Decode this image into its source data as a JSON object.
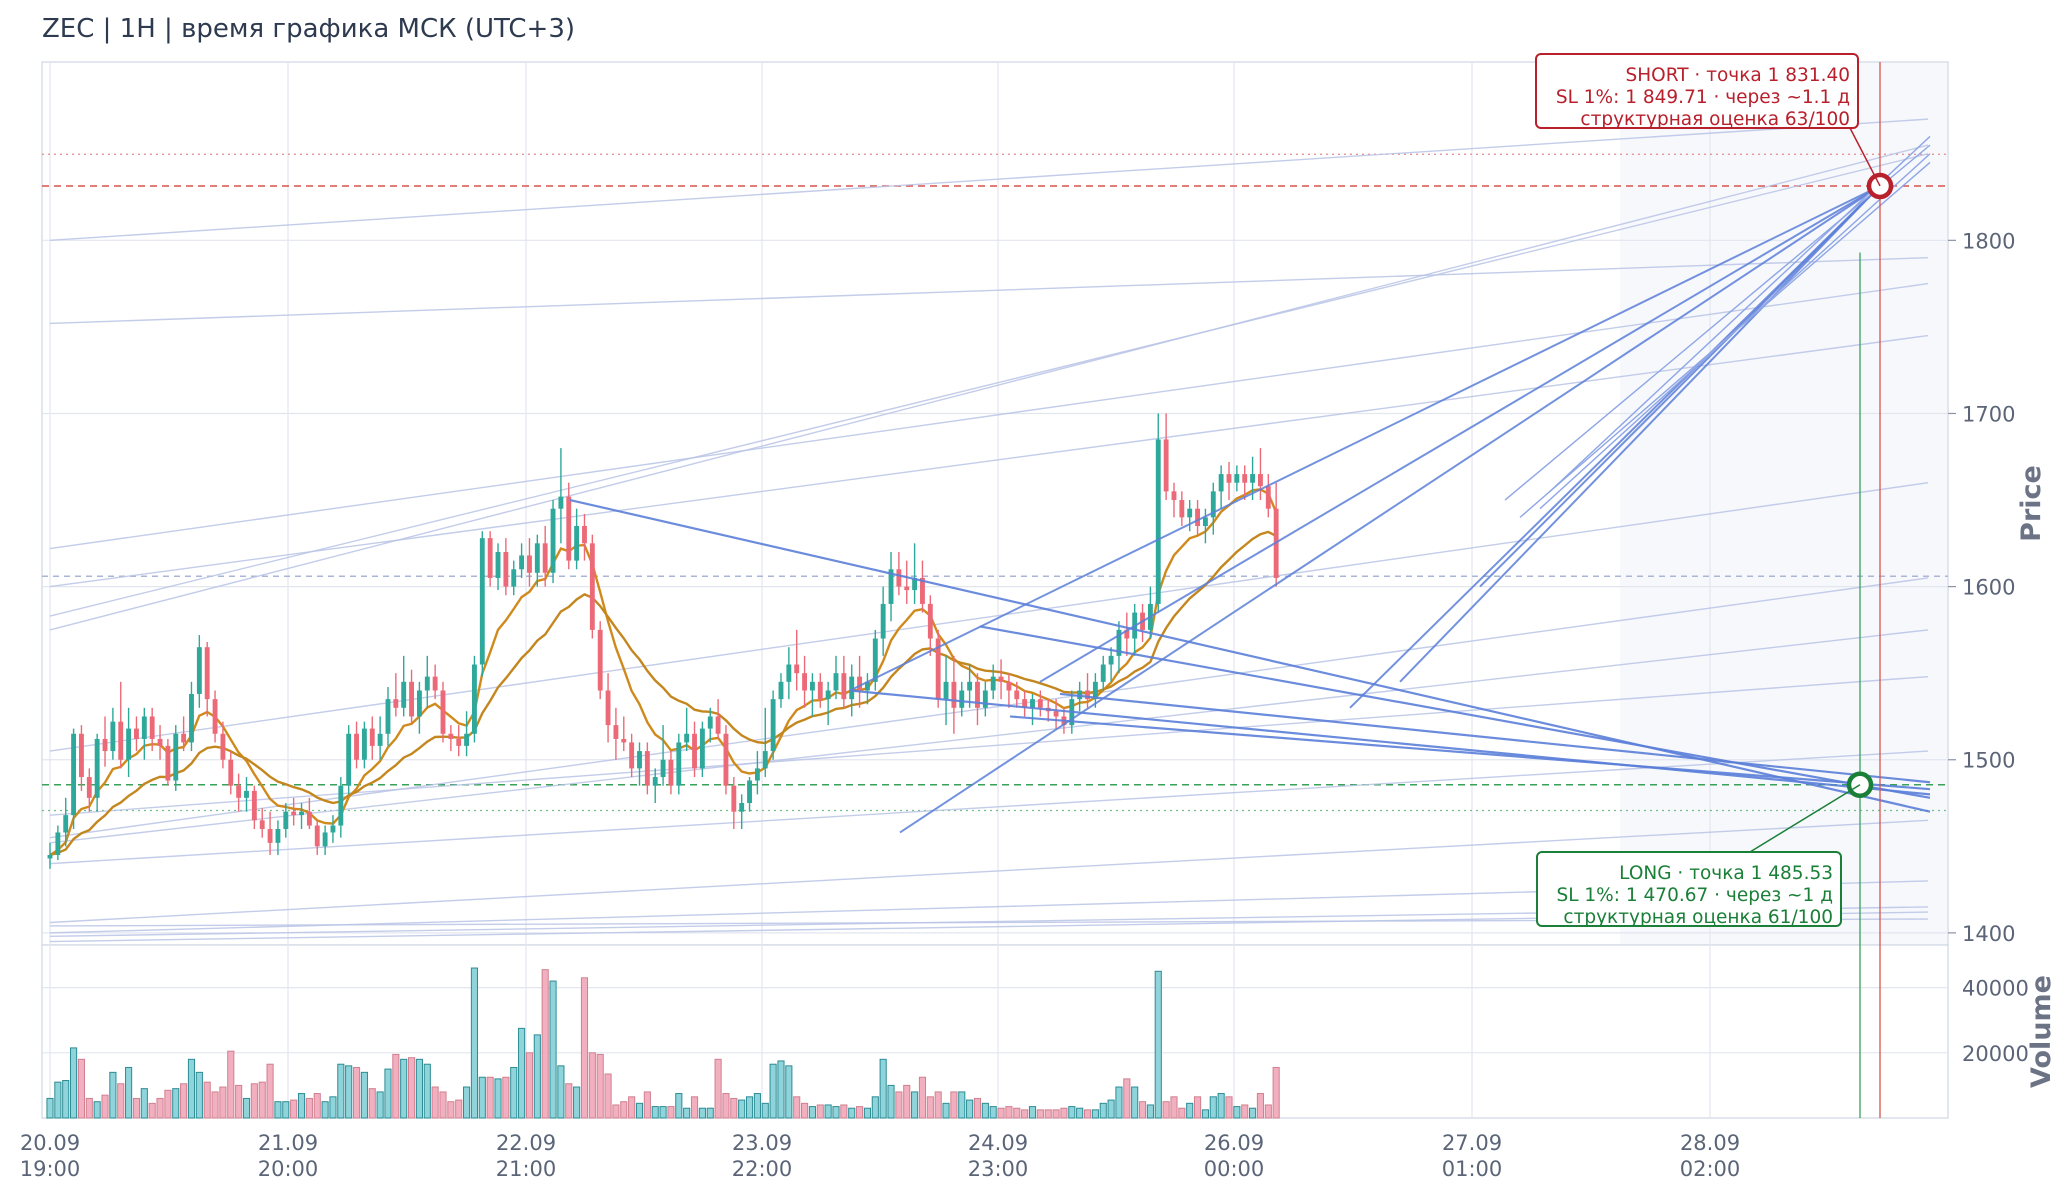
{
  "title": "ZEC | 1H | время графика МСК (UTC+3)",
  "colors": {
    "up": "#2ea89a",
    "down": "#ec6a78",
    "ema_fast": "#d08a1c",
    "ema_slow": "#c4871f",
    "trend": "#5b7fd9",
    "short": "#b8202c",
    "long": "#1a7f37",
    "vol_up": "#8fd4db",
    "vol_down": "#f2afbf",
    "grid": "#e2e6ef"
  },
  "chart_data": {
    "type": "candlestick",
    "symbol": "ZEC",
    "timeframe": "1H",
    "x_ticks": [
      {
        "date": "20.09",
        "time": "19:00"
      },
      {
        "date": "21.09",
        "time": "20:00"
      },
      {
        "date": "22.09",
        "time": "21:00"
      },
      {
        "date": "23.09",
        "time": "22:00"
      },
      {
        "date": "24.09",
        "time": "23:00"
      },
      {
        "date": "26.09",
        "time": "00:00"
      },
      {
        "date": "27.09",
        "time": "01:00"
      },
      {
        "date": "28.09",
        "time": "02:00"
      }
    ],
    "price_axis": {
      "label": "Price",
      "ticks": [
        1400,
        1500,
        1600,
        1700,
        1800
      ],
      "range": [
        1393,
        1903
      ]
    },
    "volume_axis": {
      "label": "Volume",
      "ticks": [
        20000,
        40000
      ],
      "range": [
        0,
        50000
      ]
    },
    "candles": [
      [
        1443,
        1452,
        1437,
        1445,
        6000
      ],
      [
        1445,
        1462,
        1442,
        1458,
        11000
      ],
      [
        1458,
        1478,
        1450,
        1468,
        11500
      ],
      [
        1468,
        1518,
        1460,
        1515,
        21500
      ],
      [
        1515,
        1520,
        1482,
        1490,
        18000
      ],
      [
        1490,
        1495,
        1470,
        1478,
        6000
      ],
      [
        1478,
        1515,
        1470,
        1512,
        5000
      ],
      [
        1512,
        1525,
        1496,
        1505,
        7000
      ],
      [
        1505,
        1530,
        1500,
        1522,
        14000
      ],
      [
        1522,
        1545,
        1495,
        1500,
        10500
      ],
      [
        1500,
        1530,
        1490,
        1518,
        15500
      ],
      [
        1518,
        1525,
        1505,
        1512,
        6000
      ],
      [
        1512,
        1530,
        1500,
        1525,
        9000
      ],
      [
        1525,
        1530,
        1505,
        1512,
        4500
      ],
      [
        1512,
        1520,
        1500,
        1508,
        6000
      ],
      [
        1508,
        1512,
        1485,
        1488,
        8500
      ],
      [
        1488,
        1520,
        1482,
        1515,
        9000
      ],
      [
        1515,
        1525,
        1505,
        1510,
        10500
      ],
      [
        1510,
        1545,
        1505,
        1538,
        18000
      ],
      [
        1538,
        1572,
        1530,
        1565,
        14000
      ],
      [
        1565,
        1568,
        1525,
        1535,
        11000
      ],
      [
        1535,
        1540,
        1510,
        1515,
        8000
      ],
      [
        1515,
        1522,
        1495,
        1500,
        9500
      ],
      [
        1500,
        1505,
        1480,
        1485,
        20500
      ],
      [
        1485,
        1492,
        1470,
        1478,
        10000
      ],
      [
        1478,
        1490,
        1470,
        1482,
        6000
      ],
      [
        1482,
        1485,
        1460,
        1465,
        10500
      ],
      [
        1465,
        1472,
        1455,
        1460,
        11000
      ],
      [
        1460,
        1470,
        1445,
        1452,
        16500
      ],
      [
        1452,
        1465,
        1445,
        1460,
        5000
      ],
      [
        1460,
        1475,
        1455,
        1470,
        5000
      ],
      [
        1470,
        1478,
        1462,
        1468,
        5500
      ],
      [
        1468,
        1475,
        1460,
        1470,
        7500
      ],
      [
        1470,
        1478,
        1460,
        1462,
        6000
      ],
      [
        1462,
        1465,
        1445,
        1450,
        7500
      ],
      [
        1450,
        1462,
        1445,
        1458,
        5000
      ],
      [
        1458,
        1468,
        1452,
        1462,
        6500
      ],
      [
        1462,
        1490,
        1455,
        1485,
        16500
      ],
      [
        1485,
        1520,
        1480,
        1515,
        16000
      ],
      [
        1515,
        1522,
        1495,
        1500,
        15500
      ],
      [
        1500,
        1522,
        1495,
        1518,
        14000
      ],
      [
        1518,
        1525,
        1500,
        1508,
        9000
      ],
      [
        1508,
        1525,
        1500,
        1515,
        8000
      ],
      [
        1515,
        1542,
        1508,
        1535,
        15000
      ],
      [
        1535,
        1550,
        1525,
        1530,
        19500
      ],
      [
        1530,
        1560,
        1525,
        1545,
        18000
      ],
      [
        1545,
        1552,
        1520,
        1525,
        18500
      ],
      [
        1525,
        1545,
        1515,
        1540,
        18000
      ],
      [
        1540,
        1560,
        1530,
        1548,
        16500
      ],
      [
        1548,
        1555,
        1535,
        1540,
        9500
      ],
      [
        1540,
        1545,
        1510,
        1515,
        8000
      ],
      [
        1515,
        1520,
        1505,
        1512,
        5000
      ],
      [
        1512,
        1520,
        1502,
        1508,
        5500
      ],
      [
        1508,
        1528,
        1502,
        1515,
        9500
      ],
      [
        1515,
        1560,
        1510,
        1555,
        46000
      ],
      [
        1555,
        1632,
        1548,
        1628,
        12500
      ],
      [
        1628,
        1632,
        1600,
        1605,
        12500
      ],
      [
        1605,
        1625,
        1598,
        1620,
        12000
      ],
      [
        1620,
        1628,
        1595,
        1600,
        12500
      ],
      [
        1600,
        1615,
        1595,
        1610,
        15500
      ],
      [
        1610,
        1625,
        1605,
        1618,
        27500
      ],
      [
        1618,
        1628,
        1600,
        1608,
        20000
      ],
      [
        1608,
        1630,
        1600,
        1625,
        25500
      ],
      [
        1625,
        1635,
        1600,
        1608,
        45500
      ],
      [
        1608,
        1650,
        1602,
        1645,
        42000
      ],
      [
        1645,
        1680,
        1625,
        1652,
        16000
      ],
      [
        1652,
        1660,
        1610,
        1615,
        10500
      ],
      [
        1615,
        1645,
        1610,
        1635,
        9500
      ],
      [
        1635,
        1642,
        1615,
        1625,
        43000
      ],
      [
        1625,
        1630,
        1570,
        1575,
        20000
      ],
      [
        1575,
        1580,
        1535,
        1540,
        19500
      ],
      [
        1540,
        1550,
        1510,
        1520,
        13500
      ],
      [
        1520,
        1530,
        1500,
        1512,
        4000
      ],
      [
        1512,
        1525,
        1505,
        1510,
        5000
      ],
      [
        1510,
        1515,
        1490,
        1495,
        6500
      ],
      [
        1495,
        1510,
        1485,
        1505,
        4500
      ],
      [
        1505,
        1510,
        1480,
        1485,
        8000
      ],
      [
        1485,
        1495,
        1475,
        1490,
        3500
      ],
      [
        1490,
        1520,
        1485,
        1500,
        3500
      ],
      [
        1500,
        1505,
        1480,
        1485,
        3500
      ],
      [
        1485,
        1515,
        1480,
        1510,
        7500
      ],
      [
        1510,
        1530,
        1505,
        1515,
        3000
      ],
      [
        1515,
        1522,
        1490,
        1495,
        6500
      ],
      [
        1495,
        1522,
        1490,
        1518,
        3000
      ],
      [
        1518,
        1530,
        1510,
        1525,
        3000
      ],
      [
        1525,
        1535,
        1512,
        1515,
        18000
      ],
      [
        1515,
        1520,
        1480,
        1485,
        7500
      ],
      [
        1485,
        1490,
        1460,
        1470,
        6000
      ],
      [
        1470,
        1480,
        1460,
        1475,
        5500
      ],
      [
        1475,
        1490,
        1470,
        1488,
        6500
      ],
      [
        1488,
        1505,
        1480,
        1495,
        7500
      ],
      [
        1495,
        1530,
        1490,
        1505,
        4500
      ],
      [
        1505,
        1540,
        1500,
        1535,
        16500
      ],
      [
        1535,
        1550,
        1530,
        1545,
        17500
      ],
      [
        1545,
        1565,
        1535,
        1555,
        16000
      ],
      [
        1555,
        1575,
        1540,
        1550,
        6500
      ],
      [
        1550,
        1560,
        1530,
        1540,
        4500
      ],
      [
        1540,
        1550,
        1525,
        1545,
        3500
      ],
      [
        1545,
        1550,
        1530,
        1535,
        4000
      ],
      [
        1535,
        1545,
        1520,
        1540,
        4000
      ],
      [
        1540,
        1560,
        1535,
        1550,
        3500
      ],
      [
        1550,
        1560,
        1530,
        1535,
        4000
      ],
      [
        1535,
        1555,
        1525,
        1548,
        3000
      ],
      [
        1548,
        1560,
        1530,
        1540,
        3500
      ],
      [
        1540,
        1550,
        1532,
        1545,
        3000
      ],
      [
        1545,
        1575,
        1540,
        1570,
        6500
      ],
      [
        1570,
        1600,
        1560,
        1590,
        18000
      ],
      [
        1590,
        1620,
        1580,
        1610,
        10000
      ],
      [
        1610,
        1620,
        1595,
        1600,
        8000
      ],
      [
        1600,
        1615,
        1590,
        1598,
        10000
      ],
      [
        1598,
        1625,
        1590,
        1605,
        8000
      ],
      [
        1605,
        1615,
        1585,
        1590,
        12500
      ],
      [
        1590,
        1595,
        1560,
        1570,
        6500
      ],
      [
        1570,
        1575,
        1530,
        1535,
        8000
      ],
      [
        1535,
        1560,
        1520,
        1545,
        4500
      ],
      [
        1545,
        1560,
        1515,
        1530,
        8000
      ],
      [
        1530,
        1545,
        1525,
        1540,
        8000
      ],
      [
        1540,
        1555,
        1530,
        1545,
        5500
      ],
      [
        1545,
        1550,
        1520,
        1530,
        6000
      ],
      [
        1530,
        1545,
        1525,
        1540,
        4500
      ],
      [
        1540,
        1555,
        1535,
        1548,
        3500
      ],
      [
        1548,
        1558,
        1535,
        1545,
        3000
      ],
      [
        1545,
        1550,
        1530,
        1540,
        3500
      ],
      [
        1540,
        1545,
        1530,
        1535,
        3000
      ],
      [
        1535,
        1540,
        1525,
        1530,
        2500
      ],
      [
        1530,
        1538,
        1520,
        1535,
        3500
      ],
      [
        1535,
        1540,
        1525,
        1530,
        2500
      ],
      [
        1530,
        1535,
        1522,
        1528,
        2500
      ],
      [
        1528,
        1535,
        1518,
        1525,
        2500
      ],
      [
        1525,
        1530,
        1515,
        1520,
        3000
      ],
      [
        1520,
        1540,
        1515,
        1535,
        3500
      ],
      [
        1535,
        1545,
        1528,
        1540,
        3000
      ],
      [
        1540,
        1550,
        1530,
        1535,
        2500
      ],
      [
        1535,
        1550,
        1530,
        1545,
        2500
      ],
      [
        1545,
        1560,
        1540,
        1555,
        4500
      ],
      [
        1555,
        1565,
        1545,
        1560,
        5500
      ],
      [
        1560,
        1580,
        1550,
        1575,
        9500
      ],
      [
        1575,
        1585,
        1560,
        1570,
        12000
      ],
      [
        1570,
        1590,
        1560,
        1585,
        9500
      ],
      [
        1585,
        1590,
        1568,
        1575,
        5000
      ],
      [
        1575,
        1600,
        1570,
        1590,
        4000
      ],
      [
        1590,
        1700,
        1585,
        1685,
        45000
      ],
      [
        1685,
        1700,
        1650,
        1655,
        5000
      ],
      [
        1655,
        1660,
        1640,
        1650,
        6500
      ],
      [
        1650,
        1655,
        1635,
        1640,
        3000
      ],
      [
        1640,
        1650,
        1632,
        1645,
        4500
      ],
      [
        1645,
        1650,
        1630,
        1635,
        6500
      ],
      [
        1635,
        1645,
        1625,
        1640,
        2500
      ],
      [
        1640,
        1660,
        1630,
        1655,
        6500
      ],
      [
        1655,
        1670,
        1645,
        1665,
        7500
      ],
      [
        1665,
        1672,
        1650,
        1660,
        6500
      ],
      [
        1660,
        1670,
        1655,
        1665,
        3500
      ],
      [
        1665,
        1670,
        1650,
        1660,
        4000
      ],
      [
        1660,
        1675,
        1650,
        1665,
        3000
      ],
      [
        1665,
        1680,
        1650,
        1658,
        7500
      ],
      [
        1658,
        1665,
        1640,
        1645,
        4000
      ],
      [
        1645,
        1660,
        1600,
        1605,
        15500
      ]
    ],
    "trade_setups": [
      {
        "side": "SHORT",
        "price": 1831.4,
        "stop": 1849.71,
        "lines": [
          "SHORT · точка 1 831.40",
          "SL 1%: 1 849.71 · через ~1.1 д",
          "структурная оценка 63/100"
        ]
      },
      {
        "side": "LONG",
        "price": 1485.53,
        "stop": 1470.67,
        "lines": [
          "LONG · точка 1 485.53",
          "SL 1%: 1 470.67 · через ~1 д",
          "структурная оценка 61/100"
        ]
      }
    ],
    "reference_lines": [
      1606,
      1470.67,
      1849.71
    ]
  }
}
